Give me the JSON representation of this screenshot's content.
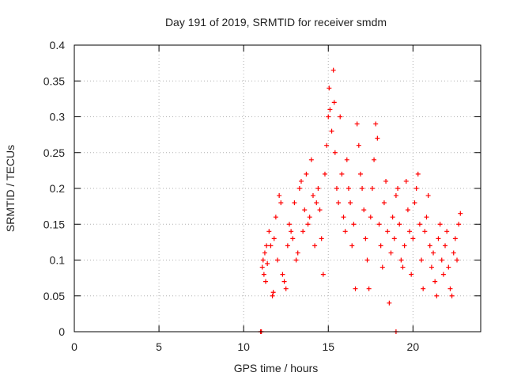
{
  "chart_data": {
    "type": "scatter",
    "title": "Day 191 of 2019, SRMTID for receiver smdm",
    "xlabel": "GPS time / hours",
    "ylabel": "SRMTID / TECUs",
    "xlim": [
      0,
      24
    ],
    "ylim": [
      0,
      0.4
    ],
    "xticks": [
      0,
      5,
      10,
      15,
      20
    ],
    "xtick_labels": [
      "0",
      "5",
      "10",
      "15",
      "20"
    ],
    "yticks": [
      0,
      0.05,
      0.1,
      0.15,
      0.2,
      0.25,
      0.3,
      0.35,
      0.4
    ],
    "ytick_labels": [
      "0",
      "0.05",
      "0.1",
      "0.15",
      "0.2",
      "0.25",
      "0.3",
      "0.35",
      "0.4"
    ],
    "grid": true,
    "marker": "plus",
    "series": [
      {
        "name": "SRMTID",
        "color": "#ff0000",
        "points": [
          [
            11.0,
            0.0
          ],
          [
            11.05,
            0.0
          ],
          [
            19.0,
            0.0
          ],
          [
            11.1,
            0.09
          ],
          [
            11.15,
            0.1
          ],
          [
            11.2,
            0.08
          ],
          [
            11.25,
            0.11
          ],
          [
            11.3,
            0.07
          ],
          [
            11.35,
            0.12
          ],
          [
            11.4,
            0.095
          ],
          [
            11.5,
            0.14
          ],
          [
            11.6,
            0.12
          ],
          [
            11.7,
            0.05
          ],
          [
            11.75,
            0.055
          ],
          [
            11.8,
            0.13
          ],
          [
            11.9,
            0.16
          ],
          [
            12.0,
            0.1
          ],
          [
            12.1,
            0.19
          ],
          [
            12.2,
            0.18
          ],
          [
            12.3,
            0.08
          ],
          [
            12.4,
            0.07
          ],
          [
            12.5,
            0.06
          ],
          [
            12.6,
            0.12
          ],
          [
            12.7,
            0.15
          ],
          [
            12.8,
            0.14
          ],
          [
            12.9,
            0.13
          ],
          [
            13.0,
            0.18
          ],
          [
            13.1,
            0.1
          ],
          [
            13.2,
            0.11
          ],
          [
            13.3,
            0.2
          ],
          [
            13.4,
            0.21
          ],
          [
            13.5,
            0.14
          ],
          [
            13.6,
            0.17
          ],
          [
            13.7,
            0.22
          ],
          [
            13.8,
            0.15
          ],
          [
            13.9,
            0.16
          ],
          [
            14.0,
            0.24
          ],
          [
            14.1,
            0.19
          ],
          [
            14.2,
            0.12
          ],
          [
            14.3,
            0.18
          ],
          [
            14.4,
            0.2
          ],
          [
            14.5,
            0.17
          ],
          [
            14.6,
            0.13
          ],
          [
            14.7,
            0.08
          ],
          [
            14.8,
            0.22
          ],
          [
            14.9,
            0.26
          ],
          [
            15.0,
            0.3
          ],
          [
            15.05,
            0.34
          ],
          [
            15.1,
            0.31
          ],
          [
            15.2,
            0.28
          ],
          [
            15.3,
            0.365
          ],
          [
            15.35,
            0.32
          ],
          [
            15.4,
            0.25
          ],
          [
            15.5,
            0.2
          ],
          [
            15.6,
            0.18
          ],
          [
            15.7,
            0.3
          ],
          [
            15.8,
            0.22
          ],
          [
            15.9,
            0.16
          ],
          [
            16.0,
            0.14
          ],
          [
            16.1,
            0.24
          ],
          [
            16.2,
            0.2
          ],
          [
            16.3,
            0.18
          ],
          [
            16.4,
            0.12
          ],
          [
            16.5,
            0.15
          ],
          [
            16.6,
            0.06
          ],
          [
            16.7,
            0.29
          ],
          [
            16.8,
            0.26
          ],
          [
            16.9,
            0.22
          ],
          [
            17.0,
            0.2
          ],
          [
            17.1,
            0.17
          ],
          [
            17.2,
            0.13
          ],
          [
            17.3,
            0.1
          ],
          [
            17.4,
            0.06
          ],
          [
            17.5,
            0.16
          ],
          [
            17.6,
            0.2
          ],
          [
            17.7,
            0.24
          ],
          [
            17.8,
            0.29
          ],
          [
            17.9,
            0.27
          ],
          [
            18.0,
            0.15
          ],
          [
            18.1,
            0.12
          ],
          [
            18.2,
            0.09
          ],
          [
            18.3,
            0.18
          ],
          [
            18.4,
            0.21
          ],
          [
            18.5,
            0.14
          ],
          [
            18.6,
            0.04
          ],
          [
            18.7,
            0.11
          ],
          [
            18.8,
            0.16
          ],
          [
            18.9,
            0.13
          ],
          [
            19.0,
            0.19
          ],
          [
            19.1,
            0.2
          ],
          [
            19.2,
            0.15
          ],
          [
            19.3,
            0.1
          ],
          [
            19.4,
            0.09
          ],
          [
            19.5,
            0.12
          ],
          [
            19.6,
            0.21
          ],
          [
            19.7,
            0.17
          ],
          [
            19.8,
            0.14
          ],
          [
            19.9,
            0.08
          ],
          [
            20.0,
            0.13
          ],
          [
            20.1,
            0.18
          ],
          [
            20.2,
            0.2
          ],
          [
            20.3,
            0.22
          ],
          [
            20.4,
            0.15
          ],
          [
            20.5,
            0.1
          ],
          [
            20.6,
            0.06
          ],
          [
            20.7,
            0.14
          ],
          [
            20.8,
            0.16
          ],
          [
            20.9,
            0.19
          ],
          [
            21.0,
            0.12
          ],
          [
            21.1,
            0.09
          ],
          [
            21.2,
            0.11
          ],
          [
            21.3,
            0.07
          ],
          [
            21.4,
            0.05
          ],
          [
            21.5,
            0.13
          ],
          [
            21.6,
            0.15
          ],
          [
            21.7,
            0.1
          ],
          [
            21.8,
            0.08
          ],
          [
            21.9,
            0.12
          ],
          [
            22.0,
            0.14
          ],
          [
            22.1,
            0.09
          ],
          [
            22.2,
            0.06
          ],
          [
            22.3,
            0.05
          ],
          [
            22.4,
            0.11
          ],
          [
            22.5,
            0.13
          ],
          [
            22.6,
            0.1
          ],
          [
            22.7,
            0.15
          ],
          [
            22.8,
            0.165
          ]
        ]
      }
    ]
  }
}
